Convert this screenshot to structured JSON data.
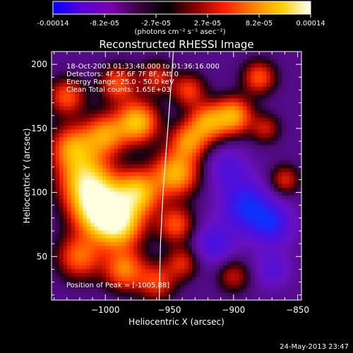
{
  "colorbar": {
    "tick_labels": [
      "-0.00014",
      "-8.2e-05",
      "-2.7e-05",
      "2.7e-05",
      "8.2e-05",
      "0.00014"
    ],
    "unit_label": "(photons cm⁻² s⁻¹ asec⁻²)",
    "colors": [
      "#0000ff",
      "#5a00d8",
      "#7a00b0",
      "#3a0040",
      "#000000",
      "#8a0000",
      "#ff2000",
      "#ff8000",
      "#ffd000",
      "#ffffff"
    ]
  },
  "chart_data": {
    "type": "heatmap",
    "title": "Reconstructed RHESSI Image",
    "xlabel": "Heliocentric X (arcsec)",
    "ylabel": "Heliocentric Y (arcsec)",
    "xlim": [
      -1042,
      -847
    ],
    "ylim": [
      16,
      210
    ],
    "x_ticks": [
      -1000,
      -950,
      -900,
      -850
    ],
    "x_tick_labels": [
      "−1000",
      "−950",
      "−900",
      "−850"
    ],
    "y_ticks": [
      50,
      100,
      150,
      200
    ],
    "y_tick_labels": [
      "50",
      "100",
      "150",
      "200"
    ],
    "annotations": [
      "18-Oct-2003 01:33:48.000 to 01:36:16.000",
      "Detectors: 4F 5F 6F 7F 8F, Att 0",
      "Energy Range: 25.0 - 50.0 keV",
      "Clean     Total counts: 1.65E+03",
      "Position of Peak = [-1005,88]"
    ],
    "peak": [
      -1005,
      88
    ],
    "limb_curve": [
      [
        -958,
        16
      ],
      [
        -957,
        60
      ],
      [
        -955,
        100
      ],
      [
        -952,
        140
      ],
      [
        -949,
        180
      ],
      [
        -947,
        210
      ]
    ],
    "blobs": [
      {
        "x": -1005,
        "y": 88,
        "amp": 1.0,
        "r": 14
      },
      {
        "x": -1015,
        "y": 110,
        "amp": 0.75,
        "r": 14
      },
      {
        "x": -990,
        "y": 75,
        "amp": 0.8,
        "r": 13
      },
      {
        "x": -975,
        "y": 100,
        "amp": 0.75,
        "r": 12
      },
      {
        "x": -1025,
        "y": 135,
        "amp": 0.6,
        "r": 12
      },
      {
        "x": -1000,
        "y": 145,
        "amp": 0.6,
        "r": 11
      },
      {
        "x": -975,
        "y": 155,
        "amp": 0.75,
        "r": 11
      },
      {
        "x": -1030,
        "y": 175,
        "amp": 0.45,
        "r": 10
      },
      {
        "x": -990,
        "y": 185,
        "amp": 0.45,
        "r": 10
      },
      {
        "x": -960,
        "y": 190,
        "amp": 0.35,
        "r": 9
      },
      {
        "x": -1020,
        "y": 50,
        "amp": 0.5,
        "r": 12
      },
      {
        "x": -985,
        "y": 40,
        "amp": 0.55,
        "r": 11
      },
      {
        "x": -960,
        "y": 30,
        "amp": 0.4,
        "r": 10
      },
      {
        "x": -945,
        "y": 115,
        "amp": 0.7,
        "r": 12
      },
      {
        "x": -935,
        "y": 140,
        "amp": 0.55,
        "r": 10
      },
      {
        "x": -920,
        "y": 155,
        "amp": 0.6,
        "r": 10
      },
      {
        "x": -900,
        "y": 160,
        "amp": 0.65,
        "r": 10
      },
      {
        "x": -880,
        "y": 190,
        "amp": 0.45,
        "r": 9
      },
      {
        "x": -935,
        "y": 180,
        "amp": 0.4,
        "r": 9
      },
      {
        "x": -945,
        "y": 75,
        "amp": 0.45,
        "r": 10
      },
      {
        "x": -940,
        "y": 45,
        "amp": 0.35,
        "r": 9
      },
      {
        "x": -860,
        "y": 110,
        "amp": 0.35,
        "r": 8
      },
      {
        "x": -875,
        "y": 150,
        "amp": 0.3,
        "r": 8
      },
      {
        "x": -900,
        "y": 35,
        "amp": 0.3,
        "r": 9
      },
      {
        "x": -890,
        "y": 90,
        "amp": -0.35,
        "r": 14
      },
      {
        "x": -870,
        "y": 75,
        "amp": -0.3,
        "r": 12
      },
      {
        "x": -915,
        "y": 60,
        "amp": -0.25,
        "r": 12
      },
      {
        "x": -905,
        "y": 120,
        "amp": -0.2,
        "r": 12
      },
      {
        "x": -870,
        "y": 40,
        "amp": -0.2,
        "r": 10
      }
    ]
  },
  "timestamp": "24-May-2013 23:47"
}
